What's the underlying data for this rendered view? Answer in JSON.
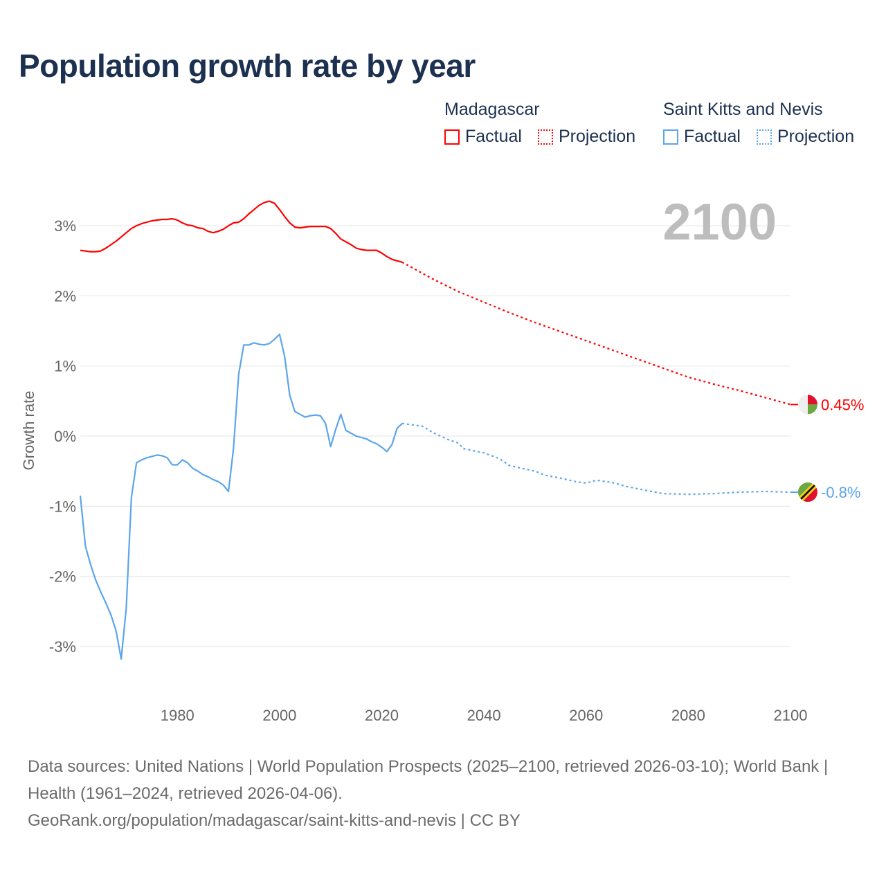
{
  "chart_data": {
    "type": "line",
    "title": "Population growth rate by year",
    "xlabel": "",
    "ylabel": "Growth rate",
    "xlim": [
      1961,
      2100
    ],
    "ylim": [
      -3.7,
      3.8
    ],
    "x_ticks": [
      1980,
      2000,
      2020,
      2040,
      2060,
      2080,
      2100
    ],
    "y_ticks": [
      {
        "v": 3,
        "label": "3%"
      },
      {
        "v": 2,
        "label": "2%"
      },
      {
        "v": 1,
        "label": "1%"
      },
      {
        "v": 0,
        "label": "0%"
      },
      {
        "v": -1,
        "label": "-1%"
      },
      {
        "v": -2,
        "label": "-2%"
      },
      {
        "v": -3,
        "label": "-3%"
      }
    ],
    "grid": true,
    "year_label": "2100",
    "legend": {
      "placement": "top-right",
      "groups": [
        {
          "name": "Madagascar",
          "factual": "Factual",
          "projection": "Projection",
          "color": "#ff0000"
        },
        {
          "name": "Saint Kitts and Nevis",
          "factual": "Factual",
          "projection": "Projection",
          "color": "#5aa5ec"
        }
      ]
    },
    "series": [
      {
        "name": "Madagascar",
        "color": "#ff0000",
        "end_label": "0.45%",
        "factual": {
          "start_year": 1961,
          "values": [
            2.65,
            2.64,
            2.63,
            2.63,
            2.64,
            2.68,
            2.73,
            2.78,
            2.84,
            2.9,
            2.96,
            3.0,
            3.03,
            3.05,
            3.07,
            3.08,
            3.09,
            3.09,
            3.1,
            3.08,
            3.04,
            3.01,
            3.0,
            2.97,
            2.96,
            2.92,
            2.9,
            2.92,
            2.95,
            3.0,
            3.04,
            3.05,
            3.1,
            3.17,
            3.23,
            3.29,
            3.33,
            3.35,
            3.32,
            3.23,
            3.13,
            3.04,
            2.98,
            2.97,
            2.98,
            2.99,
            2.99,
            2.99,
            2.99,
            2.96,
            2.89,
            2.81,
            2.77,
            2.73,
            2.68,
            2.66,
            2.65,
            2.65,
            2.65,
            2.61,
            2.56,
            2.52,
            2.5,
            2.48
          ]
        },
        "projection": {
          "years": [
            2024,
            2025,
            2030,
            2035,
            2040,
            2045,
            2050,
            2055,
            2060,
            2065,
            2070,
            2075,
            2080,
            2085,
            2090,
            2095,
            2100
          ],
          "values": [
            2.48,
            2.44,
            2.24,
            2.06,
            1.91,
            1.76,
            1.62,
            1.49,
            1.36,
            1.23,
            1.1,
            0.97,
            0.84,
            0.74,
            0.65,
            0.55,
            0.45
          ]
        }
      },
      {
        "name": "Saint Kitts and Nevis",
        "color": "#5aa5ec",
        "end_label": "-0.8%",
        "factual": {
          "start_year": 1961,
          "values": [
            -0.85,
            -1.57,
            -1.83,
            -2.05,
            -2.22,
            -2.38,
            -2.55,
            -2.78,
            -3.18,
            -2.45,
            -0.88,
            -0.38,
            -0.34,
            -0.31,
            -0.29,
            -0.27,
            -0.28,
            -0.31,
            -0.41,
            -0.41,
            -0.34,
            -0.38,
            -0.46,
            -0.5,
            -0.55,
            -0.58,
            -0.62,
            -0.65,
            -0.7,
            -0.79,
            -0.17,
            0.88,
            1.3,
            1.3,
            1.33,
            1.31,
            1.3,
            1.32,
            1.38,
            1.45,
            1.13,
            0.58,
            0.35,
            0.31,
            0.27,
            0.29,
            0.3,
            0.29,
            0.18,
            -0.15,
            0.1,
            0.31,
            0.08,
            0.04,
            0.0,
            -0.02,
            -0.04,
            -0.08,
            -0.11,
            -0.16,
            -0.22,
            -0.12,
            0.11,
            0.18
          ]
        },
        "projection": {
          "years": [
            2024,
            2027,
            2028,
            2030,
            2033,
            2035,
            2036,
            2040,
            2043,
            2045,
            2048,
            2050,
            2052,
            2055,
            2058,
            2060,
            2062,
            2065,
            2068,
            2070,
            2075,
            2080,
            2085,
            2090,
            2095,
            2100
          ],
          "values": [
            0.18,
            0.15,
            0.14,
            0.05,
            -0.05,
            -0.1,
            -0.18,
            -0.24,
            -0.32,
            -0.42,
            -0.47,
            -0.5,
            -0.56,
            -0.6,
            -0.65,
            -0.67,
            -0.63,
            -0.66,
            -0.72,
            -0.75,
            -0.82,
            -0.83,
            -0.82,
            -0.8,
            -0.79,
            -0.8
          ]
        }
      }
    ]
  },
  "footer": {
    "sources": "Data sources: United Nations | World Population Prospects (2025–2100, retrieved 2026-03-10); World Bank | Health (1961–2024, retrieved 2026-04-06).",
    "credit": "GeoRank.org/population/madagascar/saint-kitts-and-nevis | CC BY"
  }
}
